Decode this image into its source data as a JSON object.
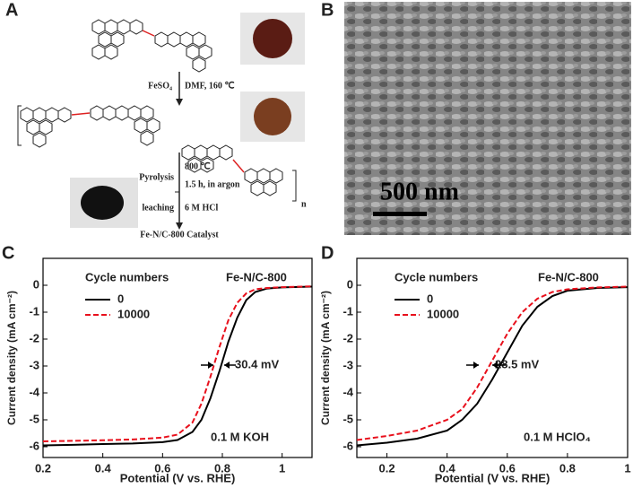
{
  "panel_labels": [
    "A",
    "B",
    "C",
    "D"
  ],
  "scheme": {
    "reagent": "FeSO₄",
    "conditions": "DMF, 160 ℃",
    "temperature": "800 ℃",
    "pyrolysis": "Pyrolysis",
    "time": "1.5 h, in argon",
    "leaching": "leaching",
    "acid": "6 M HCl",
    "product": "Fe-N/C-800 Catalyst",
    "repeat": "n"
  },
  "sem": {
    "scale_bar": "500 nm"
  },
  "chart_data": [
    {
      "type": "line",
      "x_label": "Potential (V vs. RHE)",
      "y_label": "Current density (mA cm⁻²)",
      "legend_title": "Cycle numbers",
      "annotations": [
        "Fe-N/C-800",
        "30.4 mV",
        "0.1 M KOH"
      ],
      "x": [
        0.2,
        0.3,
        0.4,
        0.5,
        0.6,
        0.65,
        0.7,
        0.73,
        0.76,
        0.79,
        0.82,
        0.85,
        0.88,
        0.91,
        0.95,
        1.0,
        1.1
      ],
      "series": [
        {
          "name": "0",
          "color": "#000000",
          "dash": false,
          "values": [
            -5.95,
            -5.93,
            -5.9,
            -5.88,
            -5.83,
            -5.75,
            -5.45,
            -5.0,
            -4.2,
            -3.2,
            -2.1,
            -1.2,
            -0.55,
            -0.25,
            -0.12,
            -0.08,
            -0.05
          ]
        },
        {
          "name": "10000",
          "color": "#e8101c",
          "dash": true,
          "values": [
            -5.8,
            -5.78,
            -5.76,
            -5.73,
            -5.66,
            -5.55,
            -5.1,
            -4.4,
            -3.4,
            -2.3,
            -1.3,
            -0.65,
            -0.3,
            -0.15,
            -0.1,
            -0.07,
            -0.04
          ]
        }
      ],
      "xlim": [
        0.2,
        1.1
      ],
      "xticks": [
        0.2,
        0.4,
        0.6,
        0.8,
        1.0
      ],
      "ylim": [
        -6.4,
        1
      ],
      "yticks": [
        0,
        -1,
        -2,
        -3,
        -4,
        -5,
        -6
      ]
    },
    {
      "type": "line",
      "x_label": "Potential (V vs. RHE)",
      "y_label": "Current density (mA cm⁻²)",
      "legend_title": "Cycle numbers",
      "annotations": [
        "Fe-N/C-800",
        "28.5 mV",
        "0.1 M HClO₄"
      ],
      "x": [
        0.1,
        0.2,
        0.3,
        0.4,
        0.45,
        0.5,
        0.55,
        0.6,
        0.65,
        0.7,
        0.75,
        0.8,
        0.9,
        1.0
      ],
      "series": [
        {
          "name": "0",
          "color": "#000000",
          "dash": false,
          "values": [
            -5.95,
            -5.85,
            -5.7,
            -5.4,
            -5.0,
            -4.4,
            -3.5,
            -2.5,
            -1.5,
            -0.8,
            -0.4,
            -0.2,
            -0.1,
            -0.07
          ]
        },
        {
          "name": "10000",
          "color": "#e8101c",
          "dash": true,
          "values": [
            -5.75,
            -5.6,
            -5.4,
            -5.0,
            -4.6,
            -3.8,
            -2.8,
            -1.8,
            -1.0,
            -0.5,
            -0.25,
            -0.15,
            -0.08,
            -0.05
          ]
        }
      ],
      "xlim": [
        0.1,
        1.0
      ],
      "xticks": [
        0.2,
        0.4,
        0.6,
        0.8,
        1.0
      ],
      "ylim": [
        -6.4,
        1
      ],
      "yticks": [
        0,
        -1,
        -2,
        -3,
        -4,
        -5,
        -6
      ]
    }
  ]
}
